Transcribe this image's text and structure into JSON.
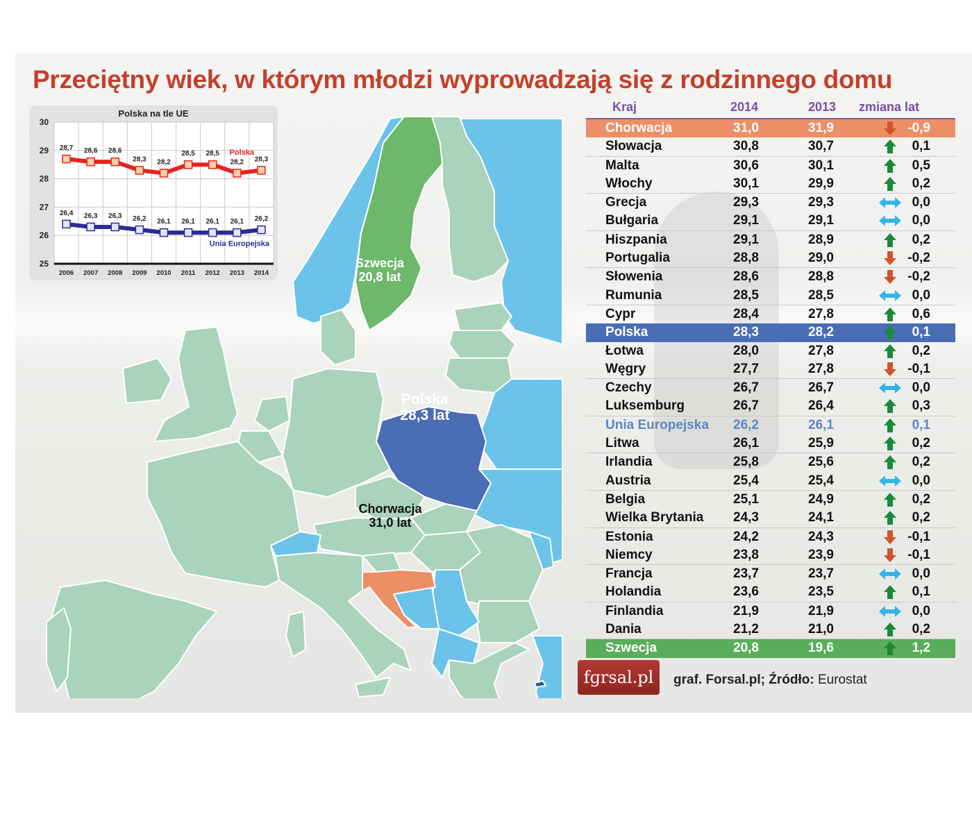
{
  "title": "Przeciętny wiek, w którym młodzi wyprowadzają się z rodzinnego domu",
  "colors": {
    "title": "#c4402a",
    "header_text": "#7a4fa6",
    "highlight_orange": "#ec8f67",
    "highlight_blue": "#4a6db3",
    "highlight_green": "#5aad5a",
    "eu_text": "#5b86c7",
    "arrow_up": "#1a8a3a",
    "arrow_down": "#d0542a",
    "arrow_same": "#35b4ea",
    "map_eu_country": "#a9d3bb",
    "map_non_eu": "#6cc3ea",
    "map_sweden": "#6db86a",
    "map_poland": "#4a6db3",
    "map_croatia": "#ec8f67",
    "polska_line": "#e8231f",
    "eu_line": "#2e2a96"
  },
  "inset_chart": {
    "title": "Polska na tle UE",
    "y_ticks": [
      "30",
      "29",
      "28",
      "27",
      "26",
      "25"
    ],
    "series_labels": {
      "polska": "Polska",
      "eu": "Unia Europejska"
    }
  },
  "chart_data": [
    {
      "type": "line",
      "title": "Polska na tle UE",
      "x": [
        "2006",
        "2007",
        "2008",
        "2009",
        "2010",
        "2011",
        "2012",
        "2013",
        "2014"
      ],
      "series": [
        {
          "name": "Polska",
          "values": [
            28.7,
            28.6,
            28.6,
            28.3,
            28.2,
            28.5,
            28.5,
            28.2,
            28.3
          ],
          "labels": [
            "28,7",
            "28,6",
            "28,6",
            "28,3",
            "28,2",
            "28,5",
            "28,5",
            "28,2",
            "28,3"
          ]
        },
        {
          "name": "Unia Europejska",
          "values": [
            26.4,
            26.3,
            26.3,
            26.2,
            26.1,
            26.1,
            26.1,
            26.1,
            26.2
          ],
          "labels": [
            "26,4",
            "26,3",
            "26,3",
            "26,2",
            "26,1",
            "26,1",
            "26,1",
            "26,1",
            "26,2"
          ]
        }
      ],
      "xlabel": "",
      "ylabel": "",
      "ylim": [
        25,
        30
      ],
      "grid": true,
      "legend_position": "inline"
    },
    {
      "type": "table",
      "title": "Przeciętny wiek, w którym młodzi wyprowadzają się z rodzinnego domu",
      "columns": [
        "Kraj",
        "2014",
        "2013",
        "zmiana lat"
      ],
      "rows": [
        [
          "Chorwacja",
          31.0,
          31.9,
          -0.9
        ],
        [
          "Słowacja",
          30.8,
          30.7,
          0.1
        ],
        [
          "Malta",
          30.6,
          30.1,
          0.5
        ],
        [
          "Włochy",
          30.1,
          29.9,
          0.2
        ],
        [
          "Grecja",
          29.3,
          29.3,
          0.0
        ],
        [
          "Bułgaria",
          29.1,
          29.1,
          0.0
        ],
        [
          "Hiszpania",
          29.1,
          28.9,
          0.2
        ],
        [
          "Portugalia",
          28.8,
          29.0,
          -0.2
        ],
        [
          "Słowenia",
          28.6,
          28.8,
          -0.2
        ],
        [
          "Rumunia",
          28.5,
          28.5,
          0.0
        ],
        [
          "Cypr",
          28.4,
          27.8,
          0.6
        ],
        [
          "Polska",
          28.3,
          28.2,
          0.1
        ],
        [
          "Łotwa",
          28.0,
          27.8,
          0.2
        ],
        [
          "Węgry",
          27.7,
          27.8,
          -0.1
        ],
        [
          "Czechy",
          26.7,
          26.7,
          0.0
        ],
        [
          "Luksemburg",
          26.7,
          26.4,
          0.3
        ],
        [
          "Unia Europejska",
          26.2,
          26.1,
          0.1
        ],
        [
          "Litwa",
          26.1,
          25.9,
          0.2
        ],
        [
          "Irlandia",
          25.8,
          25.6,
          0.2
        ],
        [
          "Austria",
          25.4,
          25.4,
          0.0
        ],
        [
          "Belgia",
          25.1,
          24.9,
          0.2
        ],
        [
          "Wielka Brytania",
          24.3,
          24.1,
          0.2
        ],
        [
          "Estonia",
          24.2,
          24.3,
          -0.1
        ],
        [
          "Niemcy",
          23.8,
          23.9,
          -0.1
        ],
        [
          "Francja",
          23.7,
          23.7,
          0.0
        ],
        [
          "Holandia",
          23.6,
          23.5,
          0.1
        ],
        [
          "Finlandia",
          21.9,
          21.9,
          0.0
        ],
        [
          "Dania",
          21.2,
          21.0,
          0.2
        ],
        [
          "Szwecja",
          20.8,
          19.6,
          1.2
        ]
      ]
    }
  ],
  "map": {
    "labels": [
      {
        "name": "Szwecja",
        "value": "20,8 lat"
      },
      {
        "name": "Polska",
        "value": "28,3 lat"
      },
      {
        "name": "Chorwacja",
        "value": "31,0 lat"
      }
    ]
  },
  "table": {
    "headers": {
      "country": "Kraj",
      "y2014": "2014",
      "y2013": "2013",
      "change": "zmiana lat"
    },
    "rows": [
      {
        "country": "Chorwacja",
        "y2014": "31,0",
        "y2013": "31,9",
        "trend": "down",
        "change": "-0,9",
        "style": "hl-orange"
      },
      {
        "country": "Słowacja",
        "y2014": "30,8",
        "y2013": "30,7",
        "trend": "up",
        "change": "0,1"
      },
      {
        "country": "Malta",
        "y2014": "30,6",
        "y2013": "30,1",
        "trend": "up",
        "change": "0,5"
      },
      {
        "country": "Włochy",
        "y2014": "30,1",
        "y2013": "29,9",
        "trend": "up",
        "change": "0,2"
      },
      {
        "country": "Grecja",
        "y2014": "29,3",
        "y2013": "29,3",
        "trend": "same",
        "change": "0,0"
      },
      {
        "country": "Bułgaria",
        "y2014": "29,1",
        "y2013": "29,1",
        "trend": "same",
        "change": "0,0"
      },
      {
        "country": "Hiszpania",
        "y2014": "29,1",
        "y2013": "28,9",
        "trend": "up",
        "change": "0,2"
      },
      {
        "country": "Portugalia",
        "y2014": "28,8",
        "y2013": "29,0",
        "trend": "down",
        "change": "-0,2"
      },
      {
        "country": "Słowenia",
        "y2014": "28,6",
        "y2013": "28,8",
        "trend": "down",
        "change": "-0,2"
      },
      {
        "country": "Rumunia",
        "y2014": "28,5",
        "y2013": "28,5",
        "trend": "same",
        "change": "0,0"
      },
      {
        "country": "Cypr",
        "y2014": "28,4",
        "y2013": "27,8",
        "trend": "up",
        "change": "0,6"
      },
      {
        "country": "Polska",
        "y2014": "28,3",
        "y2013": "28,2",
        "trend": "up",
        "change": "0,1",
        "style": "hl-blue"
      },
      {
        "country": "Łotwa",
        "y2014": "28,0",
        "y2013": "27,8",
        "trend": "up",
        "change": "0,2"
      },
      {
        "country": "Węgry",
        "y2014": "27,7",
        "y2013": "27,8",
        "trend": "down",
        "change": "-0,1"
      },
      {
        "country": "Czechy",
        "y2014": "26,7",
        "y2013": "26,7",
        "trend": "same",
        "change": "0,0"
      },
      {
        "country": "Luksemburg",
        "y2014": "26,7",
        "y2013": "26,4",
        "trend": "up",
        "change": "0,3"
      },
      {
        "country": "Unia Europejska",
        "y2014": "26,2",
        "y2013": "26,1",
        "trend": "up",
        "change": "0,1",
        "style": "hl-eu"
      },
      {
        "country": "Litwa",
        "y2014": "26,1",
        "y2013": "25,9",
        "trend": "up",
        "change": "0,2"
      },
      {
        "country": "Irlandia",
        "y2014": "25,8",
        "y2013": "25,6",
        "trend": "up",
        "change": "0,2"
      },
      {
        "country": "Austria",
        "y2014": "25,4",
        "y2013": "25,4",
        "trend": "same",
        "change": "0,0"
      },
      {
        "country": "Belgia",
        "y2014": "25,1",
        "y2013": "24,9",
        "trend": "up",
        "change": "0,2"
      },
      {
        "country": "Wielka Brytania",
        "y2014": "24,3",
        "y2013": "24,1",
        "trend": "up",
        "change": "0,2"
      },
      {
        "country": "Estonia",
        "y2014": "24,2",
        "y2013": "24,3",
        "trend": "down",
        "change": "-0,1"
      },
      {
        "country": "Niemcy",
        "y2014": "23,8",
        "y2013": "23,9",
        "trend": "down",
        "change": "-0,1"
      },
      {
        "country": "Francja",
        "y2014": "23,7",
        "y2013": "23,7",
        "trend": "same",
        "change": "0,0"
      },
      {
        "country": "Holandia",
        "y2014": "23,6",
        "y2013": "23,5",
        "trend": "up",
        "change": "0,1"
      },
      {
        "country": "Finlandia",
        "y2014": "21,9",
        "y2013": "21,9",
        "trend": "same",
        "change": "0,0"
      },
      {
        "country": "Dania",
        "y2014": "21,2",
        "y2013": "21,0",
        "trend": "up",
        "change": "0,2"
      },
      {
        "country": "Szwecja",
        "y2014": "20,8",
        "y2013": "19,6",
        "trend": "up",
        "change": "1,2",
        "style": "hl-green"
      }
    ]
  },
  "footer": {
    "logo_text": "fɡrsal.pl",
    "source_prefix": "graf. Forsal.pl; Źródło:",
    "source_name": "Eurostat"
  }
}
